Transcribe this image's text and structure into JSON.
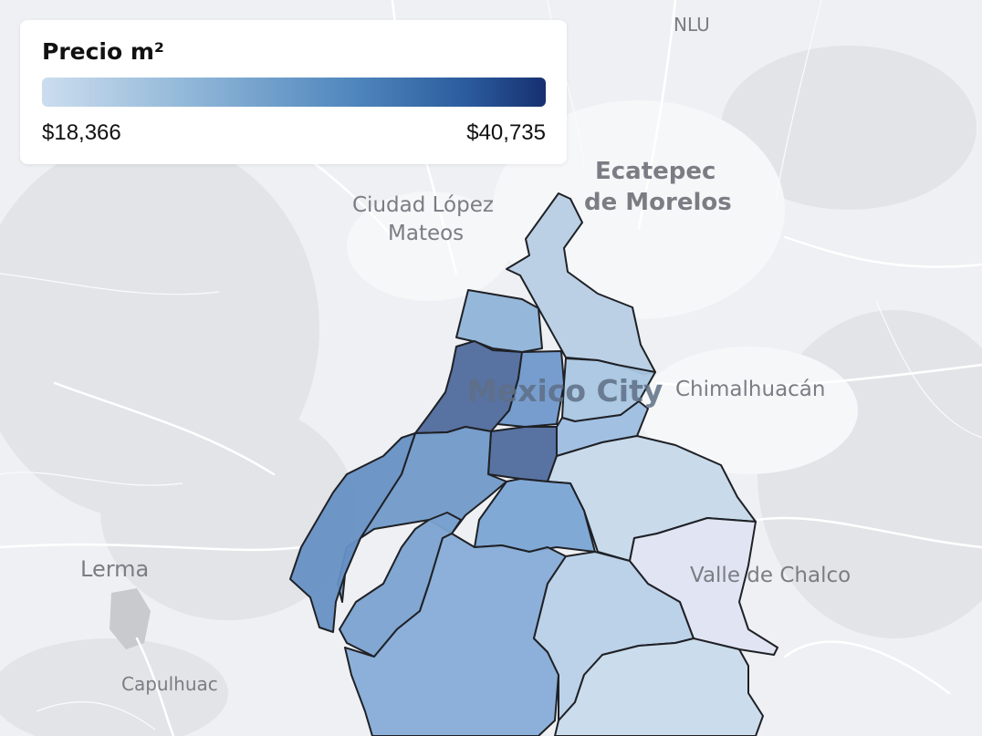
{
  "legend": {
    "title": "Precio m²",
    "min_label": "$18,366",
    "max_label": "$40,735",
    "gradient": [
      "#ccddee",
      "#8fb6d7",
      "#4f86bd",
      "#2a5a9c",
      "#163070"
    ]
  },
  "places": {
    "nlu": "NLU",
    "ecatepec_1": "Ecatepec",
    "ecatepec_2": "de Morelos",
    "lopez_1": "Ciudad López",
    "lopez_2": "Mateos",
    "mexico_city": "Mexico City",
    "chimalhuacan": "Chimalhuacán",
    "lerma": "Lerma",
    "valle_chalco": "Valle de Chalco",
    "capulhuac": "Capulhuac"
  },
  "colors": {
    "background": "#eef0f3",
    "border": "#1f2126"
  }
}
